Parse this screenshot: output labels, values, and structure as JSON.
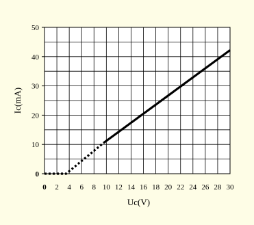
{
  "chart_data": {
    "type": "line",
    "title": "",
    "xlabel": "Uc(V)",
    "ylabel": "Ic(mA)",
    "xlim": [
      0,
      30
    ],
    "ylim": [
      0,
      50
    ],
    "x_ticks": [
      "0",
      "2",
      "4",
      "6",
      "8",
      "10",
      "12",
      "14",
      "16",
      "18",
      "20",
      "22",
      "24",
      "26",
      "28",
      "30"
    ],
    "y_ticks": [
      "0",
      "10",
      "20",
      "30",
      "40",
      "50"
    ],
    "grid": true,
    "series": [
      {
        "style": "dotted",
        "color": "#000000",
        "points": [
          [
            0,
            0
          ],
          [
            3.5,
            0
          ],
          [
            9.6,
            10.6
          ]
        ]
      },
      {
        "style": "solid",
        "color": "#000000",
        "points": [
          [
            9.6,
            10.6
          ],
          [
            30,
            42.2
          ]
        ]
      }
    ]
  },
  "colors": {
    "background": "#fefde6",
    "plot_area": "#ffffff",
    "grid": "#000000"
  }
}
